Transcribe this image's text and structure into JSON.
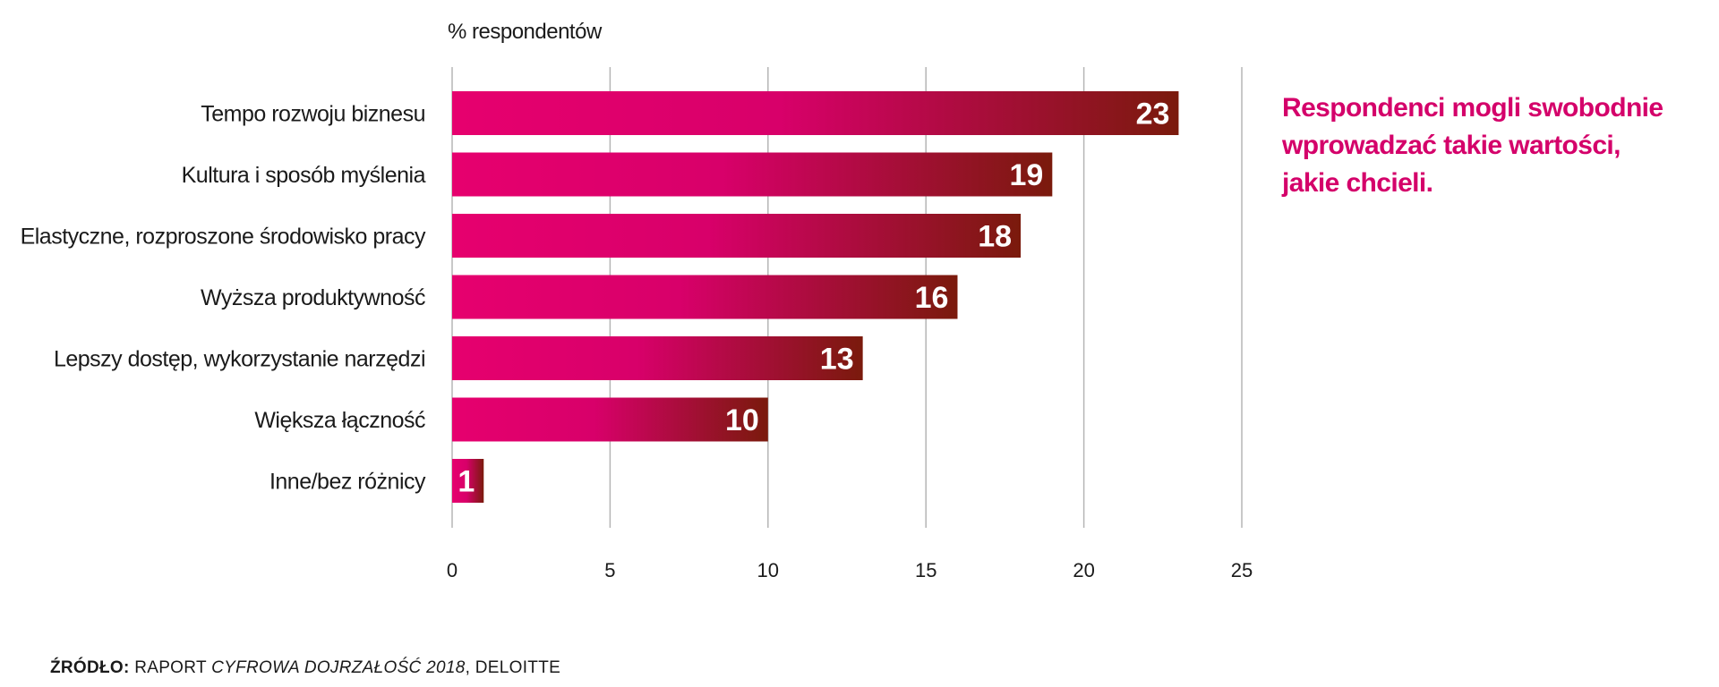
{
  "chart_data": {
    "type": "bar",
    "orientation": "horizontal",
    "title": "",
    "ylabel": "% respondentów",
    "xlabel": "",
    "categories": [
      "Tempo rozwoju biznesu",
      "Kultura i sposób myślenia",
      "Elastyczne, rozproszone środowisko pracy",
      "Wyższa produktywność",
      "Lepszy dostęp, wykorzystanie narzędzi",
      "Większa łączność",
      "Inne/bez różnicy"
    ],
    "values": [
      23,
      19,
      18,
      16,
      13,
      10,
      1
    ],
    "data_labels": [
      "23",
      "19",
      "18",
      "16",
      "13",
      "10",
      "1"
    ],
    "xlim": [
      0,
      25
    ],
    "x_ticks": [
      "0",
      "5",
      "10",
      "15",
      "20",
      "25"
    ],
    "x_tick_values": [
      0,
      5,
      10,
      15,
      20,
      25
    ],
    "grid": true,
    "bar_gradient": [
      "#e6006e",
      "#7a1a0c"
    ]
  },
  "note": {
    "text": "Respondenci mogli swobodnie wprowadzać takie wartości, jakie chcieli.",
    "color": "#d4006a"
  },
  "source": {
    "label": "ŹRÓDŁO:",
    "text_before": " RAPORT ",
    "title": "CYFROWA DOJRZAŁOŚĆ 2018",
    "text_after": ", DELOITTE"
  }
}
